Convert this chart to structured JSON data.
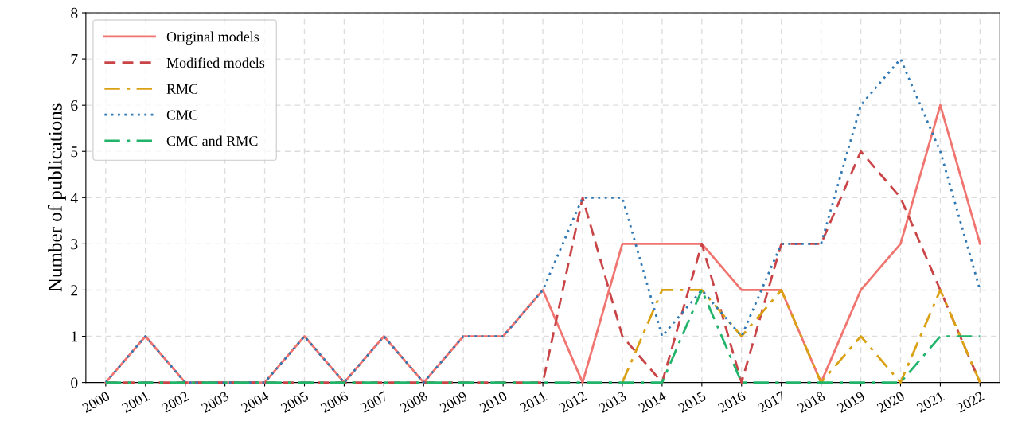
{
  "chart_data": {
    "type": "line",
    "ylabel": "Number of publications",
    "categories": [
      "2000",
      "2001",
      "2002",
      "2003",
      "2004",
      "2005",
      "2006",
      "2007",
      "2008",
      "2009",
      "2010",
      "2011",
      "2012",
      "2013",
      "2014",
      "2015",
      "2016",
      "2017",
      "2018",
      "2019",
      "2020",
      "2021",
      "2022"
    ],
    "series": [
      {
        "name": "Original models",
        "color": "#f07470",
        "line_style": "solid",
        "values": [
          0,
          1,
          0,
          0,
          0,
          1,
          0,
          1,
          0,
          1,
          1,
          2,
          0,
          3,
          3,
          3,
          2,
          2,
          0,
          2,
          3,
          6,
          3
        ]
      },
      {
        "name": "Modified models",
        "color": "#c94446",
        "line_style": "dashed",
        "values": [
          0,
          0,
          0,
          0,
          0,
          0,
          0,
          0,
          0,
          0,
          0,
          0,
          4,
          1,
          0,
          3,
          0,
          3,
          3,
          5,
          4,
          2,
          0
        ]
      },
      {
        "name": "RMC",
        "color": "#dba114",
        "line_style": "dashdot",
        "values": [
          null,
          null,
          null,
          null,
          null,
          null,
          null,
          null,
          null,
          null,
          null,
          null,
          null,
          0,
          2,
          2,
          1,
          2,
          0,
          1,
          0,
          2,
          0
        ]
      },
      {
        "name": "CMC",
        "color": "#2f78b4",
        "line_style": "dotted",
        "values": [
          0,
          1,
          0,
          0,
          0,
          1,
          0,
          1,
          0,
          1,
          1,
          2,
          4,
          4,
          1,
          2,
          1,
          3,
          3,
          6,
          7,
          5,
          2
        ]
      },
      {
        "name": "CMC and RMC",
        "color": "#21b46a",
        "line_style": "dashdot",
        "values": [
          0,
          0,
          0,
          0,
          0,
          0,
          0,
          0,
          0,
          0,
          0,
          0,
          0,
          0,
          0,
          2,
          0,
          0,
          0,
          0,
          0,
          1,
          1
        ]
      }
    ],
    "ylim": [
      0,
      8
    ],
    "yticks": [
      0,
      1,
      2,
      3,
      4,
      5,
      6,
      7,
      8
    ],
    "grid": true,
    "legend": "top left",
    "marker": "none"
  }
}
